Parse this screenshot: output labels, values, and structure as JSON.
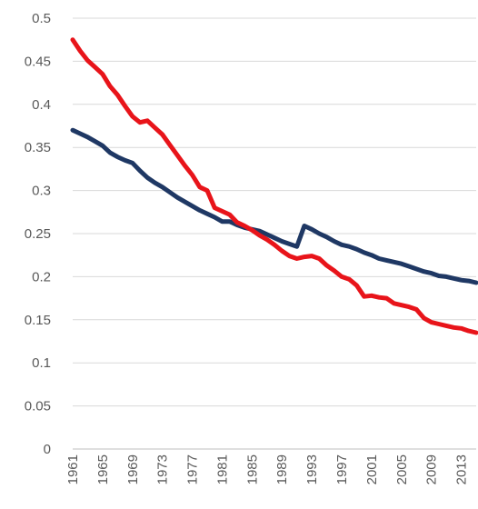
{
  "chart_data": {
    "type": "line",
    "title": "",
    "xlabel": "",
    "ylabel": "",
    "x": [
      1961,
      1962,
      1963,
      1964,
      1965,
      1966,
      1967,
      1968,
      1969,
      1970,
      1971,
      1972,
      1973,
      1974,
      1975,
      1976,
      1977,
      1978,
      1979,
      1980,
      1981,
      1982,
      1983,
      1984,
      1985,
      1986,
      1987,
      1988,
      1989,
      1990,
      1991,
      1992,
      1993,
      1994,
      1995,
      1996,
      1997,
      1998,
      1999,
      2000,
      2001,
      2002,
      2003,
      2004,
      2005,
      2006,
      2007,
      2008,
      2009,
      2010,
      2011,
      2012,
      2013,
      2014,
      2015
    ],
    "x_tick_labels": [
      "1961",
      "1965",
      "1969",
      "1973",
      "1977",
      "1981",
      "1985",
      "1989",
      "1993",
      "1997",
      "2001",
      "2005",
      "2009",
      "2013"
    ],
    "y_ticks": [
      0,
      0.05,
      0.1,
      0.15,
      0.2,
      0.25,
      0.3,
      0.35,
      0.4,
      0.45,
      0.5
    ],
    "y_tick_labels": [
      "0",
      "0.05",
      "0.1",
      "0.15",
      "0.2",
      "0.25",
      "0.3",
      "0.35",
      "0.4",
      "0.45",
      "0.5"
    ],
    "ylim": [
      0,
      0.5
    ],
    "grid": true,
    "legend": "none",
    "series": [
      {
        "color": "#1f3864",
        "values": [
          0.37,
          0.366,
          0.362,
          0.357,
          0.352,
          0.344,
          0.339,
          0.335,
          0.332,
          0.323,
          0.315,
          0.309,
          0.304,
          0.298,
          0.292,
          0.287,
          0.282,
          0.277,
          0.273,
          0.269,
          0.264,
          0.264,
          0.26,
          0.257,
          0.255,
          0.253,
          0.249,
          0.245,
          0.241,
          0.238,
          0.235,
          0.259,
          0.255,
          0.25,
          0.246,
          0.241,
          0.237,
          0.235,
          0.232,
          0.228,
          0.225,
          0.221,
          0.219,
          0.217,
          0.215,
          0.212,
          0.209,
          0.206,
          0.204,
          0.201,
          0.2,
          0.198,
          0.196,
          0.195,
          0.193
        ]
      },
      {
        "color": "#e8141a",
        "values": [
          0.475,
          0.462,
          0.451,
          0.443,
          0.435,
          0.421,
          0.411,
          0.398,
          0.386,
          0.379,
          0.381,
          0.373,
          0.365,
          0.353,
          0.341,
          0.329,
          0.318,
          0.304,
          0.3,
          0.28,
          0.276,
          0.272,
          0.263,
          0.259,
          0.254,
          0.248,
          0.243,
          0.237,
          0.23,
          0.224,
          0.221,
          0.223,
          0.224,
          0.221,
          0.213,
          0.207,
          0.2,
          0.197,
          0.19,
          0.177,
          0.178,
          0.176,
          0.175,
          0.169,
          0.167,
          0.165,
          0.162,
          0.152,
          0.147,
          0.145,
          0.143,
          0.141,
          0.14,
          0.137,
          0.135
        ]
      }
    ]
  }
}
